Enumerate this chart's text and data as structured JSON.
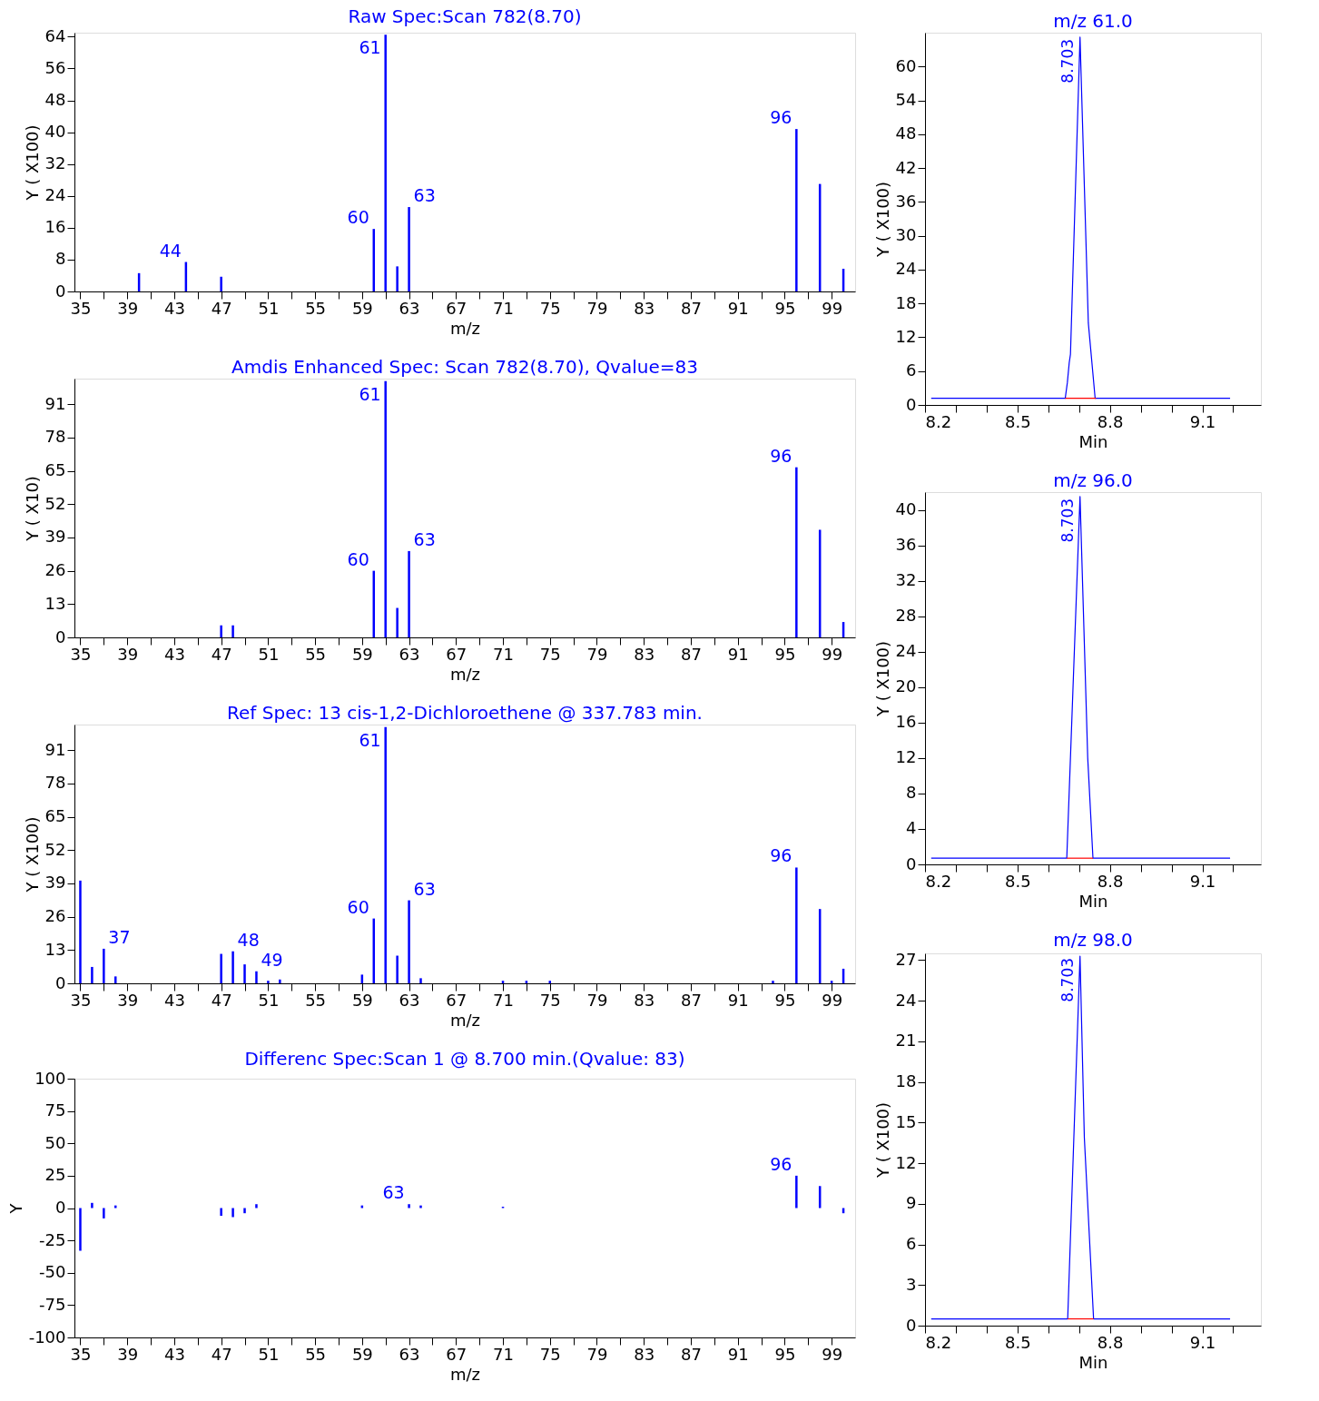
{
  "chart_data": [
    {
      "type": "bar",
      "title": "Raw Spec:Scan 782(8.70)",
      "xlabel": "m/z",
      "ylabel": "Y ( X100)",
      "color": "#0000ff",
      "x": [
        40,
        44,
        47,
        60,
        61,
        62,
        63,
        96,
        98,
        100
      ],
      "values": [
        4.6,
        7.4,
        3.7,
        15.7,
        64.5,
        6.3,
        21.2,
        40.8,
        27,
        5.7
      ],
      "xlim": [
        34.5,
        101
      ],
      "xticks": [
        35,
        {
          "value": 37,
          "label": null
        },
        39,
        {
          "value": 41,
          "label": null
        },
        43,
        {
          "value": 45,
          "label": null
        },
        47,
        {
          "value": 49,
          "label": null
        },
        51,
        {
          "value": 53,
          "label": null
        },
        55,
        {
          "value": 57,
          "label": null
        },
        59,
        {
          "value": 61,
          "label": null
        },
        63,
        {
          "value": 65,
          "label": null
        },
        67,
        {
          "value": 69,
          "label": null
        },
        71,
        {
          "value": 73,
          "label": null
        },
        75,
        {
          "value": 77,
          "label": null
        },
        79,
        {
          "value": 81,
          "label": null
        },
        83,
        {
          "value": 85,
          "label": null
        },
        87,
        {
          "value": 89,
          "label": null
        },
        91,
        {
          "value": 93,
          "label": null
        },
        95,
        {
          "value": 97,
          "label": null
        },
        99
      ],
      "ylim": [
        0,
        65
      ],
      "yticks": [
        0,
        8,
        16,
        24,
        32,
        40,
        48,
        56,
        64
      ],
      "annotations": [
        {
          "text": "44",
          "x": 44,
          "y": 7.4
        },
        {
          "text": "60",
          "x": 60,
          "y": 15.7
        },
        {
          "text": "61",
          "x": 61,
          "y": 64.5
        },
        {
          "text": "63",
          "x": 63,
          "y": 21.2
        },
        {
          "text": "96",
          "x": 96,
          "y": 40.8
        }
      ]
    },
    {
      "type": "bar",
      "title": "Amdis Enhanced Spec: Scan 782(8.70), Qvalue=83",
      "xlabel": "m/z",
      "ylabel": "Y ( X10)",
      "color": "#0000ff",
      "x": [
        47,
        48,
        60,
        61,
        62,
        63,
        96,
        98,
        100
      ],
      "values": [
        4.7,
        4.7,
        26,
        100,
        11.5,
        33.7,
        66.4,
        42,
        6
      ],
      "xlim": [
        34.5,
        101
      ],
      "xticks": [
        35,
        {
          "value": 37,
          "label": null
        },
        39,
        {
          "value": 41,
          "label": null
        },
        43,
        {
          "value": 45,
          "label": null
        },
        47,
        {
          "value": 49,
          "label": null
        },
        51,
        {
          "value": 53,
          "label": null
        },
        55,
        {
          "value": 57,
          "label": null
        },
        59,
        {
          "value": 61,
          "label": null
        },
        63,
        {
          "value": 65,
          "label": null
        },
        67,
        {
          "value": 69,
          "label": null
        },
        71,
        {
          "value": 73,
          "label": null
        },
        75,
        {
          "value": 77,
          "label": null
        },
        79,
        {
          "value": 81,
          "label": null
        },
        83,
        {
          "value": 85,
          "label": null
        },
        87,
        {
          "value": 89,
          "label": null
        },
        91,
        {
          "value": 93,
          "label": null
        },
        95,
        {
          "value": 97,
          "label": null
        },
        99
      ],
      "ylim": [
        0,
        101
      ],
      "yticks": [
        0,
        13,
        26,
        39,
        52,
        65,
        78,
        91
      ],
      "annotations": [
        {
          "text": "60",
          "x": 60,
          "y": 26
        },
        {
          "text": "61",
          "x": 61,
          "y": 100
        },
        {
          "text": "63",
          "x": 63,
          "y": 33.7
        },
        {
          "text": "96",
          "x": 96,
          "y": 66.4
        }
      ]
    },
    {
      "type": "bar",
      "title": "Ref Spec:   13 cis-1,2-Dichloroethene @ 337.783 min.",
      "xlabel": "m/z",
      "ylabel": "Y ( X100)",
      "color": "#0000ff",
      "x": [
        35,
        36,
        37,
        38,
        47,
        48,
        49,
        50,
        51,
        52,
        59,
        60,
        61,
        62,
        63,
        64,
        71,
        73,
        75,
        94,
        96,
        98,
        99,
        100
      ],
      "values": [
        40.1,
        6.4,
        13.5,
        2.7,
        11.5,
        12.5,
        7.4,
        4.7,
        1,
        1.5,
        3.4,
        25.3,
        100,
        10.8,
        32.4,
        2,
        1,
        1,
        1,
        1,
        45.2,
        29,
        1,
        5.7
      ],
      "xlim": [
        34.5,
        101
      ],
      "xticks": [
        35,
        {
          "value": 37,
          "label": null
        },
        39,
        {
          "value": 41,
          "label": null
        },
        43,
        {
          "value": 45,
          "label": null
        },
        47,
        {
          "value": 49,
          "label": null
        },
        51,
        {
          "value": 53,
          "label": null
        },
        55,
        {
          "value": 57,
          "label": null
        },
        59,
        {
          "value": 61,
          "label": null
        },
        63,
        {
          "value": 65,
          "label": null
        },
        67,
        {
          "value": 69,
          "label": null
        },
        71,
        {
          "value": 73,
          "label": null
        },
        75,
        {
          "value": 77,
          "label": null
        },
        79,
        {
          "value": 81,
          "label": null
        },
        83,
        {
          "value": 85,
          "label": null
        },
        87,
        {
          "value": 89,
          "label": null
        },
        91,
        {
          "value": 93,
          "label": null
        },
        95,
        {
          "value": 97,
          "label": null
        },
        99
      ],
      "ylim": [
        0,
        101
      ],
      "yticks": [
        0,
        13,
        26,
        39,
        52,
        65,
        78,
        91
      ],
      "annotations": [
        {
          "text": "37",
          "x": 37,
          "y": 13.5
        },
        {
          "text": "48",
          "x": 48,
          "y": 12.5
        },
        {
          "text": "49",
          "x": 50,
          "y": 4.7
        },
        {
          "text": "60",
          "x": 60,
          "y": 25.3
        },
        {
          "text": "61",
          "x": 61,
          "y": 100
        },
        {
          "text": "63",
          "x": 63,
          "y": 32.4
        },
        {
          "text": "96",
          "x": 96,
          "y": 45.2
        }
      ]
    },
    {
      "type": "bar",
      "title": "Differenc Spec:Scan 1 @  8.700 min.(Qvalue: 83)",
      "xlabel": "m/z",
      "ylabel": "Y",
      "color": "#0000ff",
      "x": [
        35,
        36,
        37,
        38,
        47,
        48,
        49,
        50,
        59,
        63,
        64,
        71,
        96,
        98,
        100
      ],
      "values": [
        -33,
        4,
        -8,
        2,
        -6,
        -7,
        -4,
        3,
        2,
        3,
        2,
        1,
        25,
        17,
        -4
      ],
      "xlim": [
        34.5,
        101
      ],
      "xticks": [
        35,
        {
          "value": 37,
          "label": null
        },
        39,
        {
          "value": 41,
          "label": null
        },
        43,
        {
          "value": 45,
          "label": null
        },
        47,
        {
          "value": 49,
          "label": null
        },
        51,
        {
          "value": 53,
          "label": null
        },
        55,
        {
          "value": 57,
          "label": null
        },
        59,
        {
          "value": 61,
          "label": null
        },
        63,
        {
          "value": 65,
          "label": null
        },
        67,
        {
          "value": 69,
          "label": null
        },
        71,
        {
          "value": 73,
          "label": null
        },
        75,
        {
          "value": 77,
          "label": null
        },
        79,
        {
          "value": 81,
          "label": null
        },
        83,
        {
          "value": 85,
          "label": null
        },
        87,
        {
          "value": 89,
          "label": null
        },
        91,
        {
          "value": 93,
          "label": null
        },
        95,
        {
          "value": 97,
          "label": null
        },
        99
      ],
      "ylim": [
        -100,
        100
      ],
      "yticks": [
        -100,
        -75,
        -50,
        -25,
        0,
        25,
        50,
        75,
        100
      ],
      "annotations": [
        {
          "text": "63",
          "x": 63,
          "y": 3
        },
        {
          "text": "96",
          "x": 96,
          "y": 25
        }
      ]
    },
    {
      "type": "line",
      "title": "m/z   61.0",
      "xlabel": "Min",
      "ylabel": "Y ( X100)",
      "series": [
        {
          "color": "#0000ff",
          "x": [
            8.22,
            8.655,
            8.662,
            8.668,
            8.672,
            8.703,
            8.73,
            8.752,
            9.19
          ],
          "values": [
            1.2,
            1.2,
            4,
            7.5,
            9,
            65.2,
            14.5,
            1.2,
            1.2
          ]
        },
        {
          "color": "#ff0000",
          "x": [
            8.655,
            8.755
          ],
          "values": [
            1.2,
            1.2
          ]
        }
      ],
      "xlim": [
        8.2,
        9.29
      ],
      "xticks": [
        8.2,
        {
          "value": 8.3,
          "label": null
        },
        {
          "value": 8.4,
          "label": null
        },
        8.5,
        {
          "value": 8.6,
          "label": null
        },
        {
          "value": 8.7,
          "label": null
        },
        8.8,
        {
          "value": 8.9,
          "label": null
        },
        {
          "value": 9.0,
          "label": null
        },
        9.1,
        {
          "value": 9.2,
          "label": null
        }
      ],
      "ylim": [
        0,
        66
      ],
      "yticks": [
        0,
        6,
        12,
        18,
        24,
        30,
        36,
        42,
        48,
        54,
        60
      ],
      "annotations": [
        {
          "text": "8.703",
          "x": 8.703,
          "y": 65.2
        }
      ]
    },
    {
      "type": "line",
      "title": "m/z   96.0",
      "xlabel": "Min",
      "ylabel": "Y ( X100)",
      "series": [
        {
          "color": "#0000ff",
          "x": [
            8.22,
            8.66,
            8.703,
            8.728,
            8.745,
            9.19
          ],
          "values": [
            0.7,
            0.7,
            41.5,
            12,
            0.7,
            0.7
          ]
        },
        {
          "color": "#ff0000",
          "x": [
            8.66,
            8.745
          ],
          "values": [
            0.7,
            0.7
          ]
        }
      ],
      "xlim": [
        8.2,
        9.29
      ],
      "xticks": [
        8.2,
        {
          "value": 8.3,
          "label": null
        },
        {
          "value": 8.4,
          "label": null
        },
        8.5,
        {
          "value": 8.6,
          "label": null
        },
        {
          "value": 8.7,
          "label": null
        },
        8.8,
        {
          "value": 8.9,
          "label": null
        },
        {
          "value": 9.0,
          "label": null
        },
        9.1,
        {
          "value": 9.2,
          "label": null
        }
      ],
      "ylim": [
        0,
        42
      ],
      "yticks": [
        0,
        4,
        8,
        12,
        16,
        20,
        24,
        28,
        32,
        36,
        40
      ],
      "annotations": [
        {
          "text": "8.703",
          "x": 8.703,
          "y": 41.5
        }
      ]
    },
    {
      "type": "line",
      "title": "m/z   98.0",
      "xlabel": "Min",
      "ylabel": "Y ( X100)",
      "series": [
        {
          "color": "#0000ff",
          "x": [
            8.22,
            8.663,
            8.703,
            8.717,
            8.747,
            9.19
          ],
          "values": [
            0.5,
            0.5,
            27.3,
            13.9,
            0.5,
            0.5
          ]
        },
        {
          "color": "#ff0000",
          "x": [
            8.663,
            8.747
          ],
          "values": [
            0.5,
            0.5
          ]
        }
      ],
      "xlim": [
        8.2,
        9.29
      ],
      "xticks": [
        8.2,
        {
          "value": 8.3,
          "label": null
        },
        {
          "value": 8.4,
          "label": null
        },
        8.5,
        {
          "value": 8.6,
          "label": null
        },
        {
          "value": 8.7,
          "label": null
        },
        8.8,
        {
          "value": 8.9,
          "label": null
        },
        {
          "value": 9.0,
          "label": null
        },
        9.1,
        {
          "value": 9.2,
          "label": null
        }
      ],
      "ylim": [
        0,
        27.5
      ],
      "yticks": [
        0,
        3,
        6,
        9,
        12,
        15,
        18,
        21,
        24,
        27
      ],
      "annotations": [
        {
          "text": "8.703",
          "x": 8.703,
          "y": 27.3
        }
      ]
    }
  ]
}
